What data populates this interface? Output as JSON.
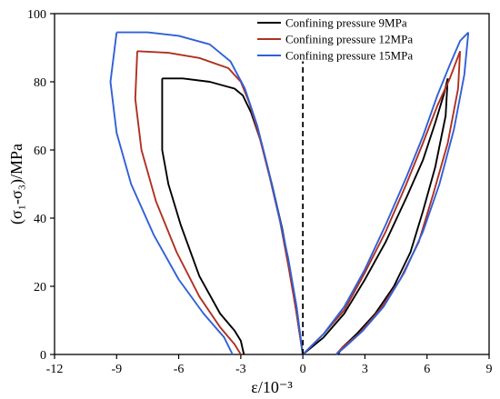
{
  "chart_data": {
    "type": "line",
    "xlabel": "ε/10⁻³",
    "ylabel": "(σ₁-σ₃)/MPa",
    "xlim": [
      -12,
      9
    ],
    "ylim": [
      0,
      100
    ],
    "x_ticks": [
      -12,
      -9,
      -6,
      -3,
      0,
      3,
      6,
      9
    ],
    "y_ticks": [
      0,
      20,
      40,
      60,
      80,
      100
    ],
    "x_tick_labels": [
      "-12",
      "-9",
      "-6",
      "-3",
      "0",
      "3",
      "6",
      "9"
    ],
    "y_tick_labels": [
      "0",
      "20",
      "40",
      "60",
      "80",
      "100"
    ],
    "legend_position": "top-right",
    "reference_line": {
      "x": 0,
      "style": "dashed"
    },
    "series": [
      {
        "name": "Confining pressure 9MPa",
        "color": "#000000",
        "lateral_loading": [
          [
            0,
            0
          ],
          [
            -0.3,
            12
          ],
          [
            -0.6,
            24
          ],
          [
            -1.0,
            37
          ],
          [
            -1.5,
            50
          ],
          [
            -2.0,
            62
          ],
          [
            -2.5,
            71
          ],
          [
            -2.9,
            76
          ],
          [
            -3.3,
            78
          ],
          [
            -4.5,
            80
          ],
          [
            -5.8,
            81
          ],
          [
            -6.8,
            81
          ]
        ],
        "lateral_unloading": [
          [
            -6.8,
            81
          ],
          [
            -6.8,
            60
          ],
          [
            -6.5,
            50
          ],
          [
            -5.9,
            38
          ],
          [
            -5.0,
            23
          ],
          [
            -4.0,
            12
          ],
          [
            -3.3,
            7
          ],
          [
            -3.0,
            4
          ],
          [
            -2.85,
            0
          ]
        ],
        "axial_loading": [
          [
            0,
            0
          ],
          [
            1.0,
            5
          ],
          [
            2.0,
            12
          ],
          [
            3.0,
            22
          ],
          [
            4.0,
            33
          ],
          [
            5.0,
            46
          ],
          [
            5.8,
            57
          ],
          [
            6.4,
            68
          ],
          [
            6.8,
            76
          ],
          [
            7.0,
            81
          ]
        ],
        "axial_unloading": [
          [
            7.0,
            81
          ],
          [
            6.9,
            70
          ],
          [
            6.4,
            55
          ],
          [
            5.8,
            42
          ],
          [
            5.2,
            30
          ],
          [
            4.4,
            20
          ],
          [
            3.5,
            12
          ],
          [
            2.6,
            6
          ],
          [
            1.9,
            2
          ],
          [
            1.7,
            0
          ]
        ]
      },
      {
        "name": "Confining pressure 12MPa",
        "color": "#b03020",
        "lateral_loading": [
          [
            0,
            0
          ],
          [
            -0.3,
            12
          ],
          [
            -0.7,
            26
          ],
          [
            -1.1,
            39
          ],
          [
            -1.6,
            52
          ],
          [
            -2.1,
            64
          ],
          [
            -2.6,
            74
          ],
          [
            -3.0,
            80
          ],
          [
            -3.6,
            84
          ],
          [
            -5.0,
            87
          ],
          [
            -6.5,
            88.5
          ],
          [
            -8.0,
            89
          ]
        ],
        "lateral_unloading": [
          [
            -8.0,
            89
          ],
          [
            -8.1,
            75
          ],
          [
            -7.8,
            60
          ],
          [
            -7.1,
            45
          ],
          [
            -6.1,
            30
          ],
          [
            -5.0,
            17
          ],
          [
            -4.0,
            8
          ],
          [
            -3.3,
            3
          ],
          [
            -3.0,
            0
          ]
        ],
        "axial_loading": [
          [
            0,
            0
          ],
          [
            1.0,
            6
          ],
          [
            2.0,
            13
          ],
          [
            3.0,
            24
          ],
          [
            4.0,
            36
          ],
          [
            5.0,
            50
          ],
          [
            5.8,
            62
          ],
          [
            6.5,
            73
          ],
          [
            7.1,
            81
          ],
          [
            7.6,
            89
          ]
        ],
        "axial_unloading": [
          [
            7.6,
            89
          ],
          [
            7.5,
            78
          ],
          [
            7.0,
            62
          ],
          [
            6.3,
            47
          ],
          [
            5.6,
            33
          ],
          [
            4.7,
            22
          ],
          [
            3.7,
            13
          ],
          [
            2.7,
            6
          ],
          [
            1.9,
            2
          ],
          [
            1.6,
            0
          ]
        ]
      },
      {
        "name": "Confining pressure 15MPa",
        "color": "#3060d8",
        "lateral_loading": [
          [
            0,
            0
          ],
          [
            -0.3,
            14
          ],
          [
            -0.7,
            28
          ],
          [
            -1.2,
            42
          ],
          [
            -1.7,
            55
          ],
          [
            -2.2,
            67
          ],
          [
            -2.8,
            78
          ],
          [
            -3.5,
            86
          ],
          [
            -4.5,
            91
          ],
          [
            -6.0,
            93.5
          ],
          [
            -7.5,
            94.5
          ],
          [
            -9.0,
            94.5
          ]
        ],
        "lateral_unloading": [
          [
            -9.0,
            94.5
          ],
          [
            -9.3,
            80
          ],
          [
            -9.0,
            65
          ],
          [
            -8.3,
            50
          ],
          [
            -7.2,
            35
          ],
          [
            -6.0,
            22
          ],
          [
            -4.8,
            12
          ],
          [
            -3.8,
            5
          ],
          [
            -3.4,
            0
          ]
        ],
        "axial_loading": [
          [
            0,
            0
          ],
          [
            1.0,
            6
          ],
          [
            2.0,
            14
          ],
          [
            3.0,
            25
          ],
          [
            4.0,
            38
          ],
          [
            5.0,
            52
          ],
          [
            5.8,
            64
          ],
          [
            6.5,
            76
          ],
          [
            7.1,
            85
          ],
          [
            7.6,
            92
          ],
          [
            8.0,
            94.5
          ]
        ],
        "axial_unloading": [
          [
            8.0,
            94.5
          ],
          [
            7.8,
            82
          ],
          [
            7.3,
            66
          ],
          [
            6.6,
            50
          ],
          [
            5.8,
            36
          ],
          [
            4.9,
            24
          ],
          [
            3.9,
            14
          ],
          [
            2.9,
            7
          ],
          [
            2.0,
            2
          ],
          [
            1.6,
            0
          ]
        ]
      }
    ]
  }
}
